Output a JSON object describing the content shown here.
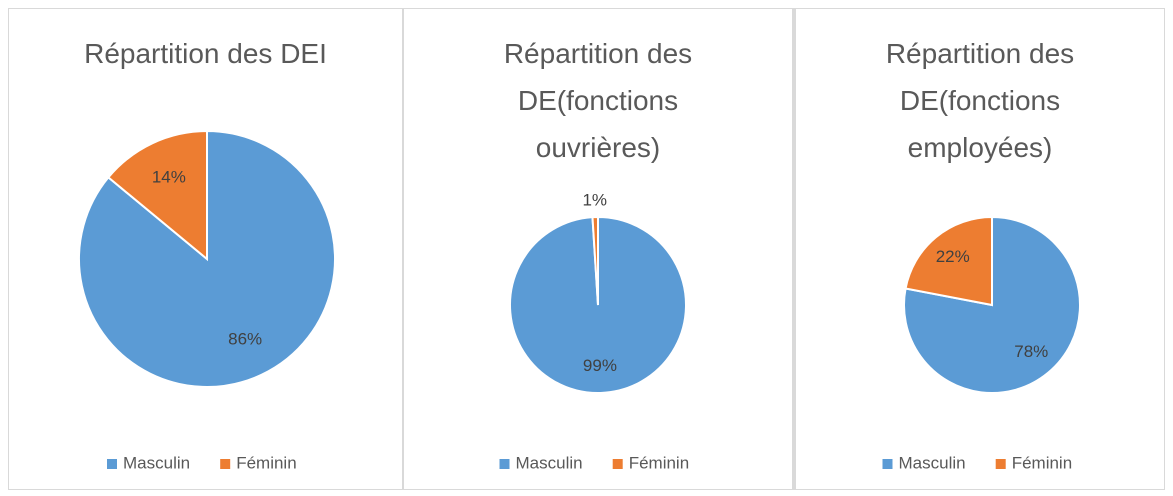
{
  "chart_data": [
    {
      "type": "pie",
      "title": "Répartition des DEI",
      "categories": [
        "Masculin",
        "Féminin"
      ],
      "values": [
        86,
        14
      ],
      "value_labels": [
        "86%",
        "14%"
      ],
      "colors": [
        "#5b9bd5",
        "#ed7d31"
      ],
      "legend": "bottom"
    },
    {
      "type": "pie",
      "title": "Répartition des DE(fonctions ouvrières)",
      "categories": [
        "Masculin",
        "Féminin"
      ],
      "values": [
        99,
        1
      ],
      "value_labels": [
        "99%",
        "1%"
      ],
      "colors": [
        "#5b9bd5",
        "#ed7d31"
      ],
      "legend": "bottom"
    },
    {
      "type": "pie",
      "title": "Répartition des DE(fonctions employées)",
      "categories": [
        "Masculin",
        "Féminin"
      ],
      "values": [
        78,
        22
      ],
      "value_labels": [
        "78%",
        "22%"
      ],
      "colors": [
        "#5b9bd5",
        "#ed7d31"
      ],
      "legend": "bottom"
    }
  ]
}
